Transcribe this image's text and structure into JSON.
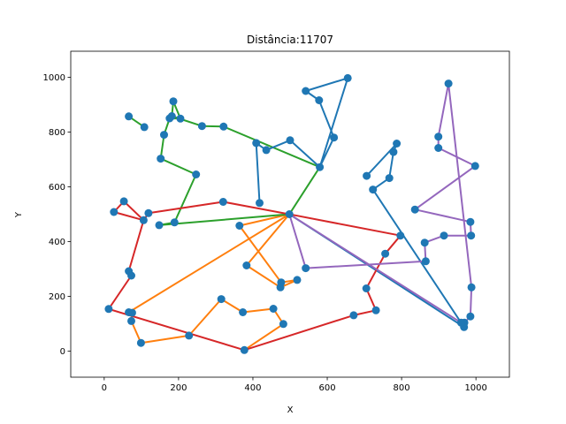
{
  "chart_data": {
    "type": "line",
    "title": "Distância:11707",
    "xlabel": "X",
    "ylabel": "Y",
    "xlim": [
      -90,
      1090
    ],
    "ylim": [
      -95,
      1095
    ],
    "xticks": [
      0,
      200,
      400,
      600,
      800,
      1000
    ],
    "yticks": [
      0,
      200,
      400,
      600,
      800,
      1000
    ],
    "grid": false,
    "marker_color": "#1f77b4",
    "series": [
      {
        "color": "#1f77b4",
        "points": [
          [
            498,
            500
          ],
          [
            968,
            88
          ],
          [
            723,
            590
          ],
          [
            767,
            632
          ],
          [
            778,
            727
          ],
          [
            787,
            758
          ],
          [
            706,
            640
          ]
        ]
      },
      {
        "color": "#1f77b4",
        "points": [
          [
            580,
            672
          ],
          [
            618,
            780
          ],
          [
            578,
            916
          ],
          [
            542,
            950
          ],
          [
            655,
            997
          ],
          [
            580,
            672
          ]
        ]
      },
      {
        "color": "#ff7f0e",
        "points": [
          [
            498,
            500
          ],
          [
            383,
            313
          ],
          [
            474,
            233
          ],
          [
            519,
            260
          ],
          [
            476,
            251
          ],
          [
            364,
            458
          ],
          [
            498,
            500
          ],
          [
            66,
            142
          ],
          [
            75,
            140
          ],
          [
            73,
            110
          ],
          [
            99,
            30
          ],
          [
            228,
            57
          ],
          [
            315,
            190
          ],
          [
            373,
            142
          ],
          [
            455,
            155
          ],
          [
            482,
            99
          ],
          [
            377,
            4
          ]
        ]
      },
      {
        "color": "#2ca02c",
        "points": [
          [
            498,
            500
          ],
          [
            148,
            460
          ],
          [
            189,
            470
          ],
          [
            247,
            645
          ],
          [
            152,
            703
          ],
          [
            161,
            790
          ],
          [
            176,
            850
          ],
          [
            205,
            849
          ],
          [
            186,
            912
          ],
          [
            182,
            858
          ],
          [
            263,
            822
          ],
          [
            321,
            820
          ],
          [
            580,
            672
          ],
          [
            498,
            500
          ]
        ]
      },
      {
        "color": "#2ca02c",
        "points": [
          [
            66,
            857
          ],
          [
            108,
            818
          ]
        ]
      },
      {
        "color": "#d62728",
        "points": [
          [
            498,
            500
          ],
          [
            320,
            545
          ],
          [
            119,
            504
          ],
          [
            106,
            478
          ],
          [
            53,
            547
          ],
          [
            26,
            508
          ],
          [
            106,
            478
          ],
          [
            66,
            292
          ],
          [
            73,
            276
          ],
          [
            12,
            154
          ],
          [
            377,
            4
          ],
          [
            671,
            131
          ],
          [
            731,
            149
          ],
          [
            705,
            229
          ],
          [
            756,
            356
          ],
          [
            797,
            422
          ],
          [
            498,
            500
          ]
        ]
      },
      {
        "color": "#9467bd",
        "points": [
          [
            498,
            500
          ],
          [
            542,
            303
          ],
          [
            865,
            328
          ],
          [
            862,
            396
          ],
          [
            914,
            422
          ],
          [
            987,
            422
          ],
          [
            985,
            472
          ],
          [
            836,
            517
          ],
          [
            998,
            676
          ],
          [
            899,
            742
          ],
          [
            899,
            783
          ],
          [
            926,
            977
          ],
          [
            988,
            233
          ],
          [
            985,
            127
          ],
          [
            969,
            104
          ],
          [
            960,
            104
          ],
          [
            498,
            500
          ]
        ]
      },
      {
        "color": "#1f77b4",
        "points": [
          [
            418,
            541
          ],
          [
            409,
            760
          ],
          [
            436,
            734
          ],
          [
            500,
            770
          ],
          [
            580,
            672
          ]
        ]
      }
    ],
    "scatter": [
      [
        498,
        500
      ],
      [
        968,
        88
      ],
      [
        723,
        590
      ],
      [
        767,
        632
      ],
      [
        778,
        727
      ],
      [
        787,
        758
      ],
      [
        706,
        640
      ],
      [
        580,
        672
      ],
      [
        618,
        780
      ],
      [
        578,
        916
      ],
      [
        542,
        950
      ],
      [
        655,
        997
      ],
      [
        383,
        313
      ],
      [
        474,
        233
      ],
      [
        519,
        260
      ],
      [
        476,
        251
      ],
      [
        364,
        458
      ],
      [
        66,
        142
      ],
      [
        75,
        140
      ],
      [
        73,
        110
      ],
      [
        99,
        30
      ],
      [
        228,
        57
      ],
      [
        315,
        190
      ],
      [
        373,
        142
      ],
      [
        455,
        155
      ],
      [
        482,
        99
      ],
      [
        377,
        4
      ],
      [
        148,
        460
      ],
      [
        189,
        470
      ],
      [
        247,
        645
      ],
      [
        152,
        703
      ],
      [
        161,
        790
      ],
      [
        176,
        850
      ],
      [
        205,
        849
      ],
      [
        186,
        912
      ],
      [
        182,
        858
      ],
      [
        263,
        822
      ],
      [
        321,
        820
      ],
      [
        66,
        857
      ],
      [
        108,
        818
      ],
      [
        320,
        545
      ],
      [
        119,
        504
      ],
      [
        106,
        478
      ],
      [
        53,
        547
      ],
      [
        26,
        508
      ],
      [
        66,
        292
      ],
      [
        73,
        276
      ],
      [
        12,
        154
      ],
      [
        671,
        131
      ],
      [
        731,
        149
      ],
      [
        705,
        229
      ],
      [
        756,
        356
      ],
      [
        797,
        422
      ],
      [
        542,
        303
      ],
      [
        865,
        328
      ],
      [
        862,
        396
      ],
      [
        914,
        422
      ],
      [
        987,
        422
      ],
      [
        985,
        472
      ],
      [
        836,
        517
      ],
      [
        998,
        676
      ],
      [
        899,
        742
      ],
      [
        899,
        783
      ],
      [
        926,
        977
      ],
      [
        988,
        233
      ],
      [
        985,
        127
      ],
      [
        969,
        104
      ],
      [
        960,
        104
      ],
      [
        418,
        541
      ],
      [
        409,
        760
      ],
      [
        436,
        734
      ],
      [
        500,
        770
      ]
    ]
  }
}
